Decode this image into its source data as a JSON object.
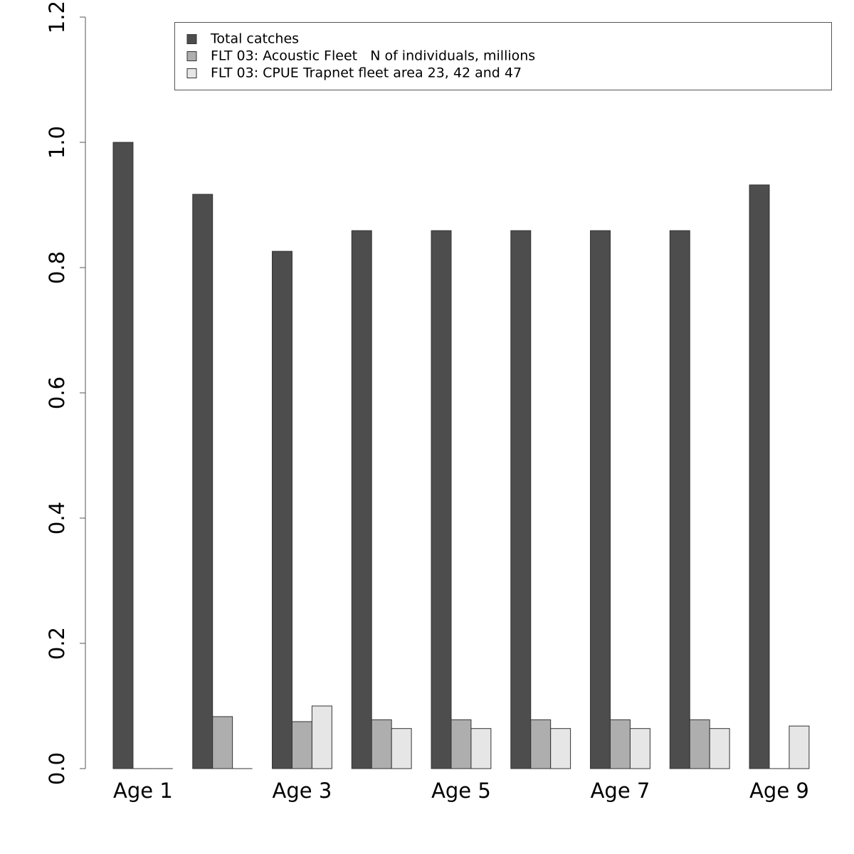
{
  "chart_data": {
    "type": "bar",
    "categories": [
      "Age 1",
      null,
      "Age 3",
      null,
      "Age 5",
      null,
      "Age 7",
      null,
      "Age 9"
    ],
    "series": [
      {
        "name": "Total catches",
        "color": "#4d4d4d",
        "values": [
          1.0,
          0.917,
          0.826,
          0.859,
          0.859,
          0.859,
          0.859,
          0.859,
          0.932
        ]
      },
      {
        "name": "FLT 03: Acoustic Fleet   N of individuals, millions",
        "color": "#aeaeae",
        "values": [
          0,
          0.083,
          0.075,
          0.078,
          0.078,
          0.078,
          0.078,
          0.078,
          0
        ]
      },
      {
        "name": "FLT 03: CPUE Trapnet fleet area 23, 42 and 47",
        "color": "#e6e6e6",
        "values": [
          0,
          0,
          0.1,
          0.064,
          0.064,
          0.064,
          0.064,
          0.064,
          0.068
        ]
      }
    ],
    "ylim": [
      0,
      1.2
    ],
    "yticks": [
      {
        "value": 0,
        "label": "0.0"
      },
      0.2,
      0.4,
      0.6,
      0.8,
      {
        "value": 1,
        "label": "1.0"
      },
      1.2
    ],
    "legend": "top-right"
  }
}
